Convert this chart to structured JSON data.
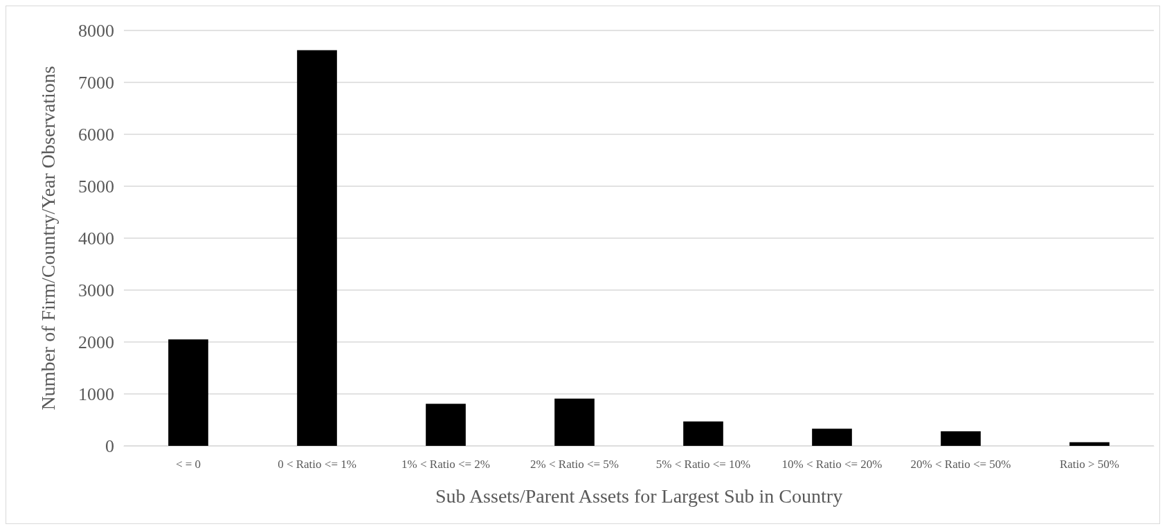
{
  "chart_data": {
    "type": "bar",
    "xlabel": "Sub Assets/Parent Assets for Largest Sub in Country",
    "ylabel": "Number of Firm/Country/Year Observations",
    "categories": [
      "< = 0",
      "0 < Ratio <= 1%",
      "1% < Ratio <= 2%",
      "2% < Ratio <= 5%",
      "5% < Ratio <= 10%",
      "10% < Ratio <= 20%",
      "20% < Ratio <= 50%",
      "Ratio > 50%"
    ],
    "values": [
      2050,
      7620,
      810,
      910,
      470,
      330,
      280,
      70
    ],
    "color": "#000000",
    "ylim": [
      0,
      8000
    ],
    "yticks": [
      0,
      1000,
      2000,
      3000,
      4000,
      5000,
      6000,
      7000,
      8000
    ],
    "grid": "y"
  }
}
